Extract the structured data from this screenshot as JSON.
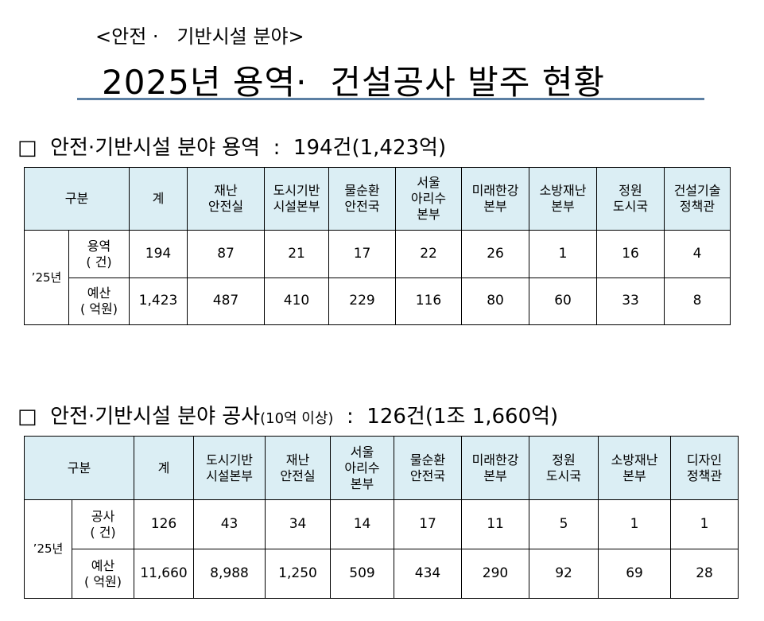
{
  "header": {
    "subtitle": "<안전 ·   기반시설 분야>",
    "title": "2025년 용역·  건설공사 발주 현황"
  },
  "sections": [
    {
      "heading": [
        "□  안전·기반시설 분야 용역  :  194건(1,423억)"
      ],
      "table": {
        "group_label": "구분",
        "columns": [
          "계",
          "재난\n안전실",
          "도시기반\n시설본부",
          "물순환\n안전국",
          "서울\n아리수\n본부",
          "미래한강\n본부",
          "소방재난\n본부",
          "정원\n도시국",
          "건설기술\n정책관"
        ],
        "year": "’25년",
        "rows": [
          {
            "label": "용역\n( 건)",
            "cells": [
              "194",
              "87",
              "21",
              "17",
              "22",
              "26",
              "1",
              "16",
              "4"
            ]
          },
          {
            "label": "예산\n( 억원)",
            "cells": [
              "1,423",
              "487",
              "410",
              "229",
              "116",
              "80",
              "60",
              "33",
              "8"
            ]
          }
        ]
      }
    },
    {
      "heading": [
        "□  안전·기반시설 분야 공사",
        "(10억 이상)",
        "  :  126건(1조 1,660억)"
      ],
      "table": {
        "group_label": "구분",
        "columns": [
          "계",
          "도시기반\n시설본부",
          "재난\n안전실",
          "서울\n아리수\n본부",
          "물순환\n안전국",
          "미래한강\n본부",
          "정원\n도시국",
          "소방재난\n본부",
          "디자인\n정책관"
        ],
        "year": "’25년",
        "rows": [
          {
            "label": "공사\n( 건)",
            "cells": [
              "126",
              "43",
              "34",
              "14",
              "17",
              "11",
              "5",
              "1",
              "1"
            ]
          },
          {
            "label": "예산\n( 억원)",
            "cells": [
              "11,660",
              "8,988",
              "1,250",
              "509",
              "434",
              "290",
              "92",
              "69",
              "28"
            ]
          }
        ]
      }
    }
  ]
}
